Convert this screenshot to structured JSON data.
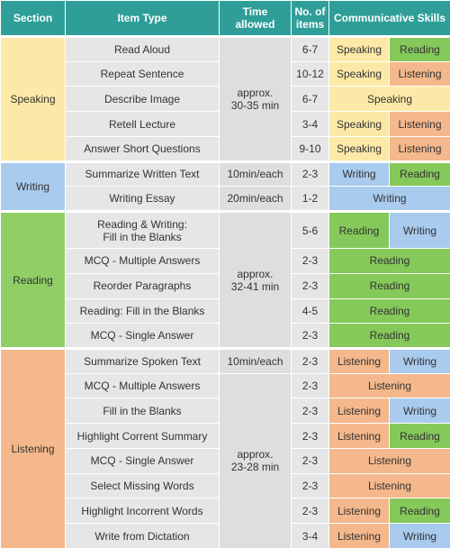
{
  "header": {
    "section": "Section",
    "item_type": "Item Type",
    "time": "Time allowed",
    "count": "No. of\nitems",
    "skills": "Communicative Skills"
  },
  "sections": [
    {
      "name": "Speaking",
      "time_groups": [
        {
          "time": "approx.\n30-35 min",
          "items": [
            {
              "item": "Read Aloud",
              "count": "6-7",
              "skills": [
                "Speaking",
                "Reading"
              ]
            },
            {
              "item": "Repeat Sentence",
              "count": "10-12",
              "skills": [
                "Speaking",
                "Listening"
              ]
            },
            {
              "item": "Describe Image",
              "count": "6-7",
              "skills": [
                "Speaking"
              ]
            },
            {
              "item": "Retell Lecture",
              "count": "3-4",
              "skills": [
                "Speaking",
                "Listening"
              ]
            },
            {
              "item": "Answer Short Questions",
              "count": "9-10",
              "skills": [
                "Speaking",
                "Listening"
              ]
            }
          ]
        }
      ]
    },
    {
      "name": "Writing",
      "time_groups": [
        {
          "time": "10min/each",
          "items": [
            {
              "item": "Summarize Written Text",
              "count": "2-3",
              "skills": [
                "Writing",
                "Reading"
              ]
            }
          ]
        },
        {
          "time": "20min/each",
          "items": [
            {
              "item": "Writing Essay",
              "count": "1-2",
              "skills": [
                "Writing"
              ]
            }
          ]
        }
      ]
    },
    {
      "name": "Reading",
      "time_groups": [
        {
          "time": "approx.\n32-41 min",
          "items": [
            {
              "item": "Reading & Writing:\nFill in the Blanks",
              "count": "5-6",
              "skills": [
                "Reading",
                "Writing"
              ]
            },
            {
              "item": "MCQ - Multiple Answers",
              "count": "2-3",
              "skills": [
                "Reading"
              ]
            },
            {
              "item": "Reorder Paragraphs",
              "count": "2-3",
              "skills": [
                "Reading"
              ]
            },
            {
              "item": "Reading: Fill in the Blanks",
              "count": "4-5",
              "skills": [
                "Reading"
              ]
            },
            {
              "item": "MCQ - Single Answer",
              "count": "2-3",
              "skills": [
                "Reading"
              ]
            }
          ]
        }
      ]
    },
    {
      "name": "Listening",
      "time_groups": [
        {
          "time": "10min/each",
          "items": [
            {
              "item": "Summarize Spoken Text",
              "count": "2-3",
              "skills": [
                "Listening",
                "Writing"
              ]
            }
          ]
        },
        {
          "time": "approx.\n23-28 min",
          "items": [
            {
              "item": "MCQ - Multiple Answers",
              "count": "2-3",
              "skills": [
                "Listening"
              ]
            },
            {
              "item": "Fill in the Blanks",
              "count": "2-3",
              "skills": [
                "Listening",
                "Writing"
              ]
            },
            {
              "item": "Highlight Corrent Summary",
              "count": "2-3",
              "skills": [
                "Listening",
                "Reading"
              ]
            },
            {
              "item": "MCQ - Single Answer",
              "count": "2-3",
              "skills": [
                "Listening"
              ]
            },
            {
              "item": "Select Missing Words",
              "count": "2-3",
              "skills": [
                "Listening"
              ]
            },
            {
              "item": "Highlight Incorrent Words",
              "count": "2-3",
              "skills": [
                "Listening",
                "Reading"
              ]
            },
            {
              "item": "Write from Dictation",
              "count": "3-4",
              "skills": [
                "Listening",
                "Writing"
              ]
            }
          ]
        }
      ]
    }
  ]
}
